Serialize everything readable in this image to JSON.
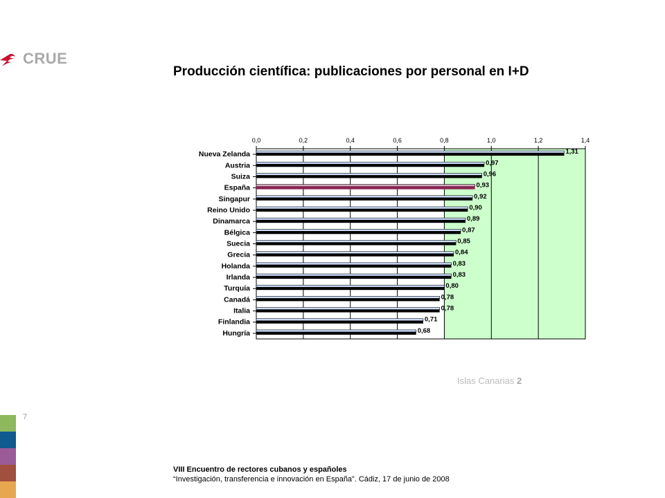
{
  "brand": {
    "name": "CRUE",
    "mark_color": "#c8102e"
  },
  "slide": {
    "title": "Producción científica: publicaciones por personal en I+D",
    "island_label": "Islas Canarias",
    "island_number": "2",
    "page_number": "7"
  },
  "footer": {
    "line1": "VIII Encuentro de rectores cubanos y españoles",
    "line2": "“Investigación, transferencia e innovación en España”. Cádiz,  17 de junio de 2008"
  },
  "stripes": [
    "#8db85c",
    "#0f5a8f",
    "#9b5a98",
    "#a14f3e",
    "#e7a750"
  ],
  "chart_data": {
    "type": "bar",
    "orientation": "horizontal",
    "title": "",
    "xlabel": "",
    "ylabel": "",
    "xlim": [
      0,
      1.4
    ],
    "ticks": [
      "0,0",
      "0,2",
      "0,4",
      "0,6",
      "0,8",
      "1,0",
      "1,2",
      "1,4"
    ],
    "tick_values": [
      0,
      0.2,
      0.4,
      0.6,
      0.8,
      1.0,
      1.2,
      1.4
    ],
    "axis_position": "top",
    "grid": true,
    "plot_background": "#ccffcc",
    "shaded_from": 0.8,
    "bar_color": "#000000",
    "highlight_color": "#8b2252",
    "highlight_category": "España",
    "categories": [
      "Nueva Zelanda",
      "Austria",
      "Suiza",
      "España",
      "Singapur",
      "Reino Unido",
      "Dinamarca",
      "Bélgica",
      "Suecia",
      "Grecia",
      "Holanda",
      "Irlanda",
      "Turquía",
      "Canadá",
      "Italia",
      "Finlandia",
      "Hungría"
    ],
    "values": [
      1.31,
      0.97,
      0.96,
      0.93,
      0.92,
      0.9,
      0.89,
      0.87,
      0.85,
      0.84,
      0.83,
      0.83,
      0.8,
      0.78,
      0.78,
      0.71,
      0.68
    ],
    "labels": [
      "1,31",
      "0,97",
      "0,96",
      "0,93",
      "0,92",
      "0,90",
      "0,89",
      "0,87",
      "0,85",
      "0,84",
      "0,83",
      "0,83",
      "0,80",
      "0,78",
      "0,78",
      "0,71",
      "0,68"
    ]
  }
}
